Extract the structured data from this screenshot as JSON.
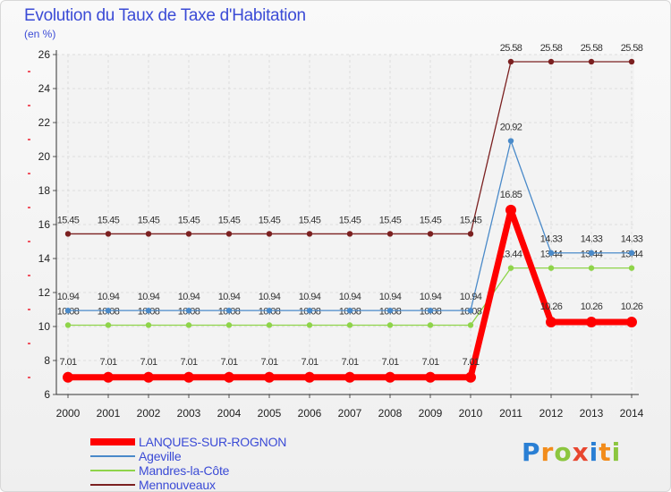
{
  "header": {
    "title": "Evolution du Taux de Taxe d'Habitation",
    "subtitle": "(en %)"
  },
  "brand": {
    "letters": [
      "P",
      "r",
      "o",
      "x",
      "i",
      "t",
      "i"
    ],
    "colors": [
      "#2a7fd4",
      "#f28c1b",
      "#8cc63f",
      "#e8462f",
      "#2a7fd4",
      "#f28c1b",
      "#8cc63f"
    ]
  },
  "chart_data": {
    "type": "line",
    "x": [
      "2000",
      "2001",
      "2002",
      "2003",
      "2004",
      "2005",
      "2006",
      "2007",
      "2008",
      "2009",
      "2010",
      "2011",
      "2012",
      "2013",
      "2014"
    ],
    "ylim": [
      6,
      26
    ],
    "yticks": [
      6,
      8,
      10,
      12,
      14,
      16,
      18,
      20,
      22,
      24,
      26
    ],
    "grid": true,
    "legend_position": "bottom-left",
    "series": [
      {
        "name": "Mennouveaux",
        "color": "#7b2020",
        "values": [
          15.45,
          15.45,
          15.45,
          15.45,
          15.45,
          15.45,
          15.45,
          15.45,
          15.45,
          15.45,
          15.45,
          25.58,
          25.58,
          25.58,
          25.58
        ],
        "labels": [
          "15.45",
          "15.45",
          "15.45",
          "15.45",
          "15.45",
          "15.45",
          "15.45",
          "15.45",
          "15.45",
          "15.45",
          "15.45",
          "25.58",
          "25.58",
          "25.58",
          "25.58"
        ]
      },
      {
        "name": "Mandres-la-Côte",
        "color": "#8fd44a",
        "values": [
          10.08,
          10.08,
          10.08,
          10.08,
          10.08,
          10.08,
          10.08,
          10.08,
          10.08,
          10.08,
          10.08,
          13.44,
          13.44,
          13.44,
          13.44
        ],
        "labels": [
          "10.08",
          "10.08",
          "10.08",
          "10.08",
          "10.08",
          "10.08",
          "10.08",
          "10.08",
          "10.08",
          "10.08",
          "10.08",
          "13.44",
          "13.44",
          "13.44",
          "13.44"
        ]
      },
      {
        "name": "Ageville",
        "color": "#4a8ac9",
        "values": [
          10.94,
          10.94,
          10.94,
          10.94,
          10.94,
          10.94,
          10.94,
          10.94,
          10.94,
          10.94,
          10.94,
          20.92,
          14.33,
          14.33,
          14.33
        ],
        "labels": [
          "10.94",
          "10.94",
          "10.94",
          "10.94",
          "10.94",
          "10.94",
          "10.94",
          "10.94",
          "10.94",
          "10.94",
          "10.94",
          "20.92",
          "14.33",
          "14.33",
          "14.33"
        ]
      },
      {
        "name": "LANQUES-SUR-ROGNON",
        "color": "#ff0000",
        "values": [
          7.01,
          7.01,
          7.01,
          7.01,
          7.01,
          7.01,
          7.01,
          7.01,
          7.01,
          7.01,
          7.01,
          16.85,
          10.26,
          10.26,
          10.26
        ],
        "labels": [
          "7.01",
          "7.01",
          "7.01",
          "7.01",
          "7.01",
          "7.01",
          "7.01",
          "7.01",
          "7.01",
          "7.01",
          "7.01",
          "16.85",
          "10.26",
          "10.26",
          "10.26"
        ]
      }
    ],
    "legend_order": [
      "LANQUES-SUR-ROGNON",
      "Ageville",
      "Mandres-la-Côte",
      "Mennouveaux"
    ]
  }
}
